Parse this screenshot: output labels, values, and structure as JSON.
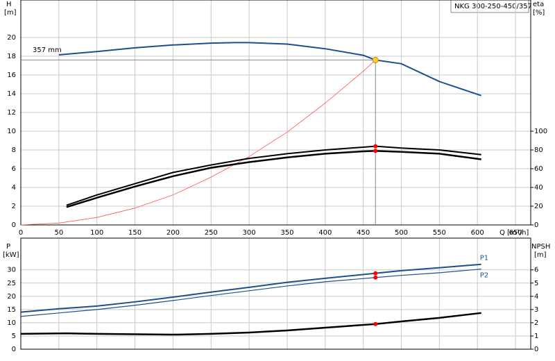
{
  "chart_data": [
    {
      "type": "line",
      "title": "NKG 300-250-450/357",
      "ylabel": "H",
      "ylabel_unit": "[m]",
      "y2label": "eta",
      "y2label_unit": "[%]",
      "xlabel": "Q [m³/h]",
      "annotation": "357 mm",
      "xlim": [
        0,
        670
      ],
      "xticks": [
        0,
        50,
        100,
        150,
        200,
        250,
        300,
        350,
        400,
        450,
        500,
        550,
        600,
        650
      ],
      "xtick_labels": true,
      "ylim": [
        0,
        24
      ],
      "yticks": [
        0,
        2,
        4,
        6,
        8,
        10,
        12,
        14,
        16,
        18,
        20
      ],
      "y2lim": [
        0,
        240
      ],
      "y2ticks": [
        0,
        20,
        40,
        60,
        80,
        100
      ],
      "grid": true,
      "series": [
        {
          "color": "#1d4f8c",
          "line_width": 2,
          "x": [
            50,
            100,
            150,
            200,
            250,
            280,
            300,
            350,
            400,
            450,
            466,
            500,
            550,
            605
          ],
          "values": [
            18.15,
            18.5,
            18.9,
            19.2,
            19.4,
            19.45,
            19.45,
            19.3,
            18.8,
            18.1,
            17.6,
            17.2,
            15.3,
            13.8
          ]
        },
        {
          "color": "#ff5555",
          "line_width": 0.8,
          "x": [
            0,
            50,
            100,
            150,
            200,
            250,
            300,
            350,
            400,
            450,
            466
          ],
          "values": [
            0,
            0.2,
            0.8,
            1.8,
            3.2,
            5.1,
            7.3,
            9.9,
            13.0,
            16.4,
            17.6
          ]
        },
        {
          "color": "#000000",
          "line_width": 2,
          "axis": "y2",
          "x": [
            60,
            100,
            150,
            200,
            250,
            300,
            350,
            400,
            450,
            466,
            500,
            550,
            605
          ],
          "values": [
            21,
            32,
            44,
            56,
            64,
            71,
            76,
            80,
            83,
            84,
            82,
            80,
            75
          ]
        },
        {
          "color": "#000000",
          "line_width": 2.5,
          "axis": "y2",
          "x": [
            60,
            100,
            150,
            200,
            250,
            300,
            350,
            400,
            450,
            466,
            500,
            550,
            605
          ],
          "values": [
            19,
            29,
            41,
            52,
            61,
            67,
            72,
            76,
            78.5,
            79,
            78,
            76,
            70
          ]
        }
      ],
      "duty_point": {
        "x": 466,
        "y": 17.6
      },
      "markers": [
        {
          "x": 466,
          "y": 84,
          "axis": "y2"
        },
        {
          "x": 466,
          "y": 79,
          "axis": "y2"
        }
      ]
    },
    {
      "type": "line",
      "ylabel": "P",
      "ylabel_unit": "[kW]",
      "y2label": "NPSH",
      "y2label_unit": "[m]",
      "xlim": [
        0,
        670
      ],
      "xticks": [
        0,
        50,
        100,
        150,
        200,
        250,
        300,
        350,
        400,
        450,
        500,
        550,
        600,
        650
      ],
      "xtick_labels": false,
      "ylim": [
        0,
        42
      ],
      "yticks": [
        0,
        5,
        10,
        15,
        20,
        25,
        30
      ],
      "y2lim": [
        0,
        8.4
      ],
      "y2ticks": [
        0,
        1,
        2,
        3,
        4,
        5,
        6
      ],
      "grid": true,
      "series": [
        {
          "name": "P1",
          "label_side": "above",
          "color": "#1d4f8c",
          "line_width": 2,
          "x": [
            0,
            50,
            100,
            150,
            200,
            250,
            300,
            350,
            400,
            466,
            500,
            550,
            605
          ],
          "values": [
            14,
            15.3,
            16.3,
            17.9,
            19.7,
            21.6,
            23.4,
            25.3,
            26.8,
            28.7,
            29.7,
            30.8,
            32.1
          ]
        },
        {
          "name": "P2",
          "label_side": "below",
          "color": "#1d4f8c",
          "line_width": 1.2,
          "x": [
            0,
            50,
            100,
            150,
            200,
            250,
            300,
            350,
            400,
            466,
            500,
            550,
            605
          ],
          "values": [
            12.4,
            13.7,
            15,
            16.6,
            18.4,
            20.3,
            22.1,
            23.9,
            25.5,
            27.1,
            27.9,
            28.9,
            30.3
          ]
        },
        {
          "color": "#000000",
          "line_width": 2.5,
          "axis": "y2",
          "x": [
            0,
            60,
            100,
            200,
            250,
            300,
            350,
            400,
            466,
            500,
            550,
            605
          ],
          "values": [
            1.16,
            1.2,
            1.16,
            1.1,
            1.16,
            1.26,
            1.42,
            1.63,
            1.9,
            2.1,
            2.37,
            2.74
          ]
        }
      ],
      "markers": [
        {
          "x": 466,
          "y": 28.7
        },
        {
          "x": 466,
          "y": 27.1
        },
        {
          "x": 466,
          "y": 1.9,
          "axis": "y2"
        }
      ]
    }
  ]
}
